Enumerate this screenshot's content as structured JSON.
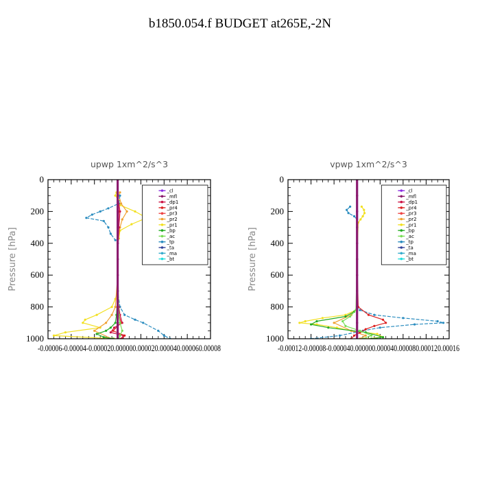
{
  "title": "b1850.054.f  BUDGET at265E,-2N",
  "legend_labels": [
    "_cl",
    "_mfl",
    "_dp1",
    "_pr4",
    "_pr3",
    "_pr2",
    "_pr1",
    "_bp",
    "_ac",
    "_tp",
    "_ta",
    "_ma",
    "_bt"
  ],
  "series_colors": {
    "_cl": "#8a2be2",
    "_mfl": "#8b1a6b",
    "_dp1": "#cc1144",
    "_pr4": "#dd2222",
    "_pr3": "#ee4444",
    "_pr2": "#f0a030",
    "_pr1": "#f2e020",
    "_bp": "#22aa22",
    "_ac": "#77dd55",
    "_tp": "#2a8cbf",
    "_ta": "#334499",
    "_ma": "#33aacc",
    "_bt": "#22dddd"
  },
  "chart_data": [
    {
      "type": "line",
      "title": "upwp   1xm^2/s^3",
      "ylabel": "Pressure  [hPa]",
      "ylim": [
        1000,
        0
      ],
      "xlim": [
        -6e-05,
        8e-05
      ],
      "yticks": [
        "0",
        "200",
        "400",
        "600",
        "800",
        "1000"
      ],
      "xtick_text": "-0.00006-0.00004-0.000020.000000.000020.000040.000060.00008",
      "legend_position": "top-right",
      "series": [
        {
          "name": "_pr1",
          "y": [
            80,
            100,
            130,
            160,
            200,
            240,
            280,
            320,
            370,
            400,
            500,
            600,
            700,
            750,
            800,
            850,
            880,
            900,
            930,
            960,
            980,
            1000
          ],
          "values": [
            -1e-06,
            -2e-06,
            1e-06,
            2e-06,
            1.5e-05,
            2.5e-05,
            1.2e-05,
            2e-06,
            1e-06,
            0,
            0,
            0,
            0,
            -2e-06,
            -5e-06,
            -1.8e-05,
            -2.8e-05,
            -3e-05,
            -1.5e-05,
            -4.5e-05,
            -5.5e-05,
            -3e-06
          ]
        },
        {
          "name": "_pr2",
          "y": [
            80,
            100,
            150,
            200,
            250,
            300,
            400,
            600,
            800,
            850,
            900,
            950,
            1000
          ],
          "values": [
            2e-06,
            1e-06,
            3e-06,
            8e-06,
            4e-06,
            2e-06,
            0,
            0,
            -2e-06,
            -5e-06,
            -1e-05,
            -2e-05,
            -5e-06
          ]
        },
        {
          "name": "_tp",
          "y": [
            100,
            150,
            180,
            200,
            220,
            240,
            260,
            300,
            340,
            380,
            400,
            500,
            600,
            700,
            800,
            850,
            880,
            900,
            950,
            980,
            1000
          ],
          "values": [
            2e-06,
            1e-06,
            -8e-06,
            -1.5e-05,
            -2.2e-05,
            -2.7e-05,
            -1.2e-05,
            -8e-06,
            -6e-06,
            -2e-06,
            0,
            0,
            0,
            0,
            2e-06,
            6e-06,
            1.5e-05,
            2.2e-05,
            3.5e-05,
            4e-05,
            4.5e-05
          ]
        },
        {
          "name": "_dp1",
          "y": [
            100,
            200,
            300,
            500,
            700,
            800,
            850,
            900,
            930,
            960,
            980,
            1000
          ],
          "values": [
            0,
            2e-06,
            1e-06,
            0,
            0,
            1e-06,
            2e-06,
            4e-06,
            -3e-06,
            -6e-06,
            5e-06,
            3e-06
          ]
        },
        {
          "name": "_pr4",
          "y": [
            100,
            200,
            400,
            700,
            850,
            900,
            950,
            980,
            1000
          ],
          "values": [
            0,
            1e-06,
            0,
            0,
            1e-06,
            3e-06,
            -4e-06,
            6e-06,
            4e-06
          ]
        },
        {
          "name": "_bp",
          "y": [
            100,
            400,
            700,
            850,
            900,
            930,
            950,
            970,
            990,
            1000
          ],
          "values": [
            0,
            0,
            0,
            -1e-06,
            -2e-06,
            -6e-06,
            -1e-05,
            -1.8e-05,
            -1.2e-05,
            -4e-06
          ]
        },
        {
          "name": "_ac",
          "y": [
            100,
            500,
            850,
            900,
            950,
            980,
            1000
          ],
          "values": [
            0,
            0,
            1e-06,
            2e-06,
            4e-06,
            2e-06,
            1e-06
          ]
        },
        {
          "name": "_cl",
          "y": [
            0,
            100,
            200,
            300,
            400,
            500,
            600,
            700,
            800,
            900,
            1000
          ],
          "values": [
            0,
            0,
            0,
            0,
            0,
            0,
            0,
            0,
            0,
            0,
            0
          ]
        },
        {
          "name": "_mfl",
          "y": [
            0,
            100,
            200,
            300,
            400,
            500,
            600,
            700,
            800,
            900,
            1000
          ],
          "values": [
            0,
            0,
            0,
            0,
            0,
            0,
            0,
            0,
            0,
            0,
            0
          ]
        }
      ]
    },
    {
      "type": "line",
      "title": "vpwp   1xm^2/s^3",
      "ylabel": "Pressure  [hPa]",
      "ylim": [
        1000,
        0
      ],
      "xlim": [
        -0.00012,
        0.00016
      ],
      "yticks": [
        "0",
        "200",
        "400",
        "600",
        "800",
        "1000"
      ],
      "xtick_text": "-0.00012-0.00008-0.000040.000000.000040.000080.000120.00016",
      "legend_position": "top-right",
      "series": [
        {
          "name": "_pr1",
          "y": [
            170,
            190,
            210,
            230,
            250,
            270,
            500,
            700,
            800,
            820,
            850,
            870,
            890,
            900,
            910,
            930,
            950,
            970,
            990,
            1000
          ],
          "values": [
            8e-06,
            1.2e-05,
            1.3e-05,
            1e-05,
            6e-06,
            2e-06,
            0,
            0,
            1e-06,
            -2e-06,
            -2e-05,
            -6e-05,
            -9e-05,
            -0.0001,
            -7e-05,
            -3.5e-05,
            -1e-05,
            3.5e-05,
            4.5e-05,
            1.5e-05
          ]
        },
        {
          "name": "_pr2",
          "y": [
            500,
            800,
            850,
            900,
            950,
            980,
            1000
          ],
          "values": [
            0,
            1e-06,
            -1e-05,
            -4e-05,
            -1e-05,
            1.5e-05,
            5e-06
          ]
        },
        {
          "name": "_tp",
          "y": [
            170,
            190,
            210,
            230,
            250,
            500,
            800,
            820,
            850,
            870,
            890,
            900,
            910,
            930,
            950,
            980,
            1000
          ],
          "values": [
            -1.2e-05,
            -1.8e-05,
            -1.5e-05,
            -5e-06,
            0,
            0,
            0,
            5e-06,
            3e-05,
            8e-05,
            0.00014,
            0.00015,
            0.0001,
            4e-05,
            1e-05,
            -3e-05,
            -8e-05
          ]
        },
        {
          "name": "_pr4",
          "y": [
            500,
            800,
            850,
            880,
            900,
            920,
            940,
            960,
            980,
            1000
          ],
          "values": [
            0,
            2e-06,
            2e-05,
            4.5e-05,
            5e-05,
            3e-05,
            1.5e-05,
            5e-06,
            -5e-06,
            -1e-05
          ]
        },
        {
          "name": "_bp",
          "y": [
            500,
            800,
            830,
            860,
            890,
            910,
            930,
            960,
            990,
            1000
          ],
          "values": [
            0,
            0,
            -5e-06,
            -2e-05,
            -7e-05,
            -8e-05,
            -5e-05,
            1.5e-05,
            4.5e-05,
            2.5e-05
          ]
        },
        {
          "name": "_ac",
          "y": [
            500,
            820,
            860,
            890,
            920,
            950,
            980,
            1000
          ],
          "values": [
            0,
            -2e-06,
            -1.2e-05,
            -2.5e-05,
            -2e-05,
            5e-06,
            2.5e-05,
            1e-05
          ]
        },
        {
          "name": "_cl",
          "y": [
            0,
            100,
            200,
            300,
            400,
            500,
            600,
            700,
            800,
            900,
            1000
          ],
          "values": [
            0,
            0,
            0,
            0,
            0,
            0,
            0,
            0,
            0,
            0,
            0
          ]
        },
        {
          "name": "_mfl",
          "y": [
            0,
            100,
            200,
            300,
            400,
            500,
            600,
            700,
            800,
            900,
            1000
          ],
          "values": [
            0,
            0,
            0,
            0,
            0,
            0,
            0,
            0,
            0,
            0,
            0
          ]
        }
      ]
    }
  ]
}
